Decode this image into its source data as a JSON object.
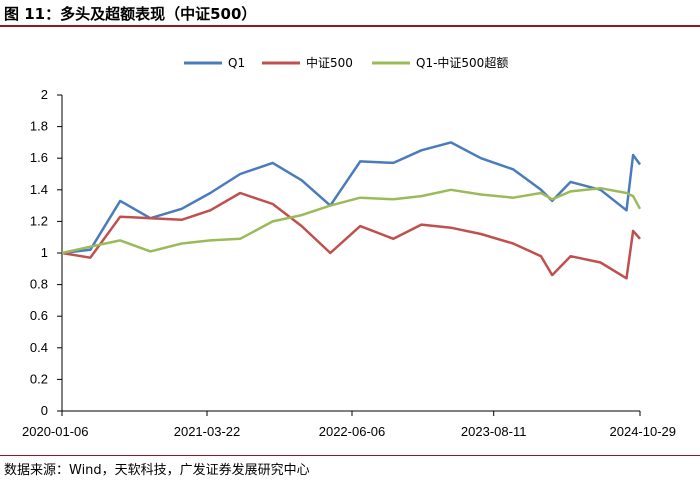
{
  "figure": {
    "title": "图 11：多头及超额表现（中证500）",
    "source": "数据来源：Wind，天软科技，广发证券发展研究中心"
  },
  "chart_data": {
    "type": "line",
    "ylim": [
      0,
      2
    ],
    "yticks": [
      "0",
      "0.2",
      "0.4",
      "0.6",
      "0.8",
      "1",
      "1.2",
      "1.4",
      "1.6",
      "1.8",
      "2"
    ],
    "xticks": [
      "2020-01-06",
      "2021-03-22",
      "2022-06-06",
      "2023-08-11",
      "2024-10-29"
    ],
    "grid": false,
    "legend": "top",
    "x": [
      "2020-01-06",
      "2020-04-01",
      "2020-07-01",
      "2020-10-01",
      "2021-01-04",
      "2021-04-01",
      "2021-07-01",
      "2021-10-08",
      "2022-01-04",
      "2022-04-01",
      "2022-07-01",
      "2022-10-10",
      "2023-01-03",
      "2023-04-03",
      "2023-07-03",
      "2023-10-09",
      "2024-01-02",
      "2024-02-05",
      "2024-04-01",
      "2024-07-01",
      "2024-09-18",
      "2024-10-08",
      "2024-10-29"
    ],
    "series": [
      {
        "name": "Q1",
        "color": "#4a7bbd",
        "values": [
          1.0,
          1.02,
          1.33,
          1.22,
          1.28,
          1.38,
          1.5,
          1.57,
          1.46,
          1.3,
          1.58,
          1.57,
          1.65,
          1.7,
          1.6,
          1.53,
          1.4,
          1.33,
          1.45,
          1.4,
          1.27,
          1.62,
          1.56
        ]
      },
      {
        "name": "中证500",
        "color": "#c0504d",
        "values": [
          1.0,
          0.97,
          1.23,
          1.22,
          1.21,
          1.27,
          1.38,
          1.31,
          1.17,
          1.0,
          1.17,
          1.09,
          1.18,
          1.16,
          1.12,
          1.06,
          0.98,
          0.86,
          0.98,
          0.94,
          0.84,
          1.14,
          1.09
        ]
      },
      {
        "name": "Q1-中证500超额",
        "color": "#9bbb59",
        "values": [
          1.0,
          1.04,
          1.08,
          1.01,
          1.06,
          1.08,
          1.09,
          1.2,
          1.24,
          1.3,
          1.35,
          1.34,
          1.36,
          1.4,
          1.37,
          1.35,
          1.38,
          1.34,
          1.39,
          1.41,
          1.38,
          1.36,
          1.28
        ]
      }
    ]
  }
}
